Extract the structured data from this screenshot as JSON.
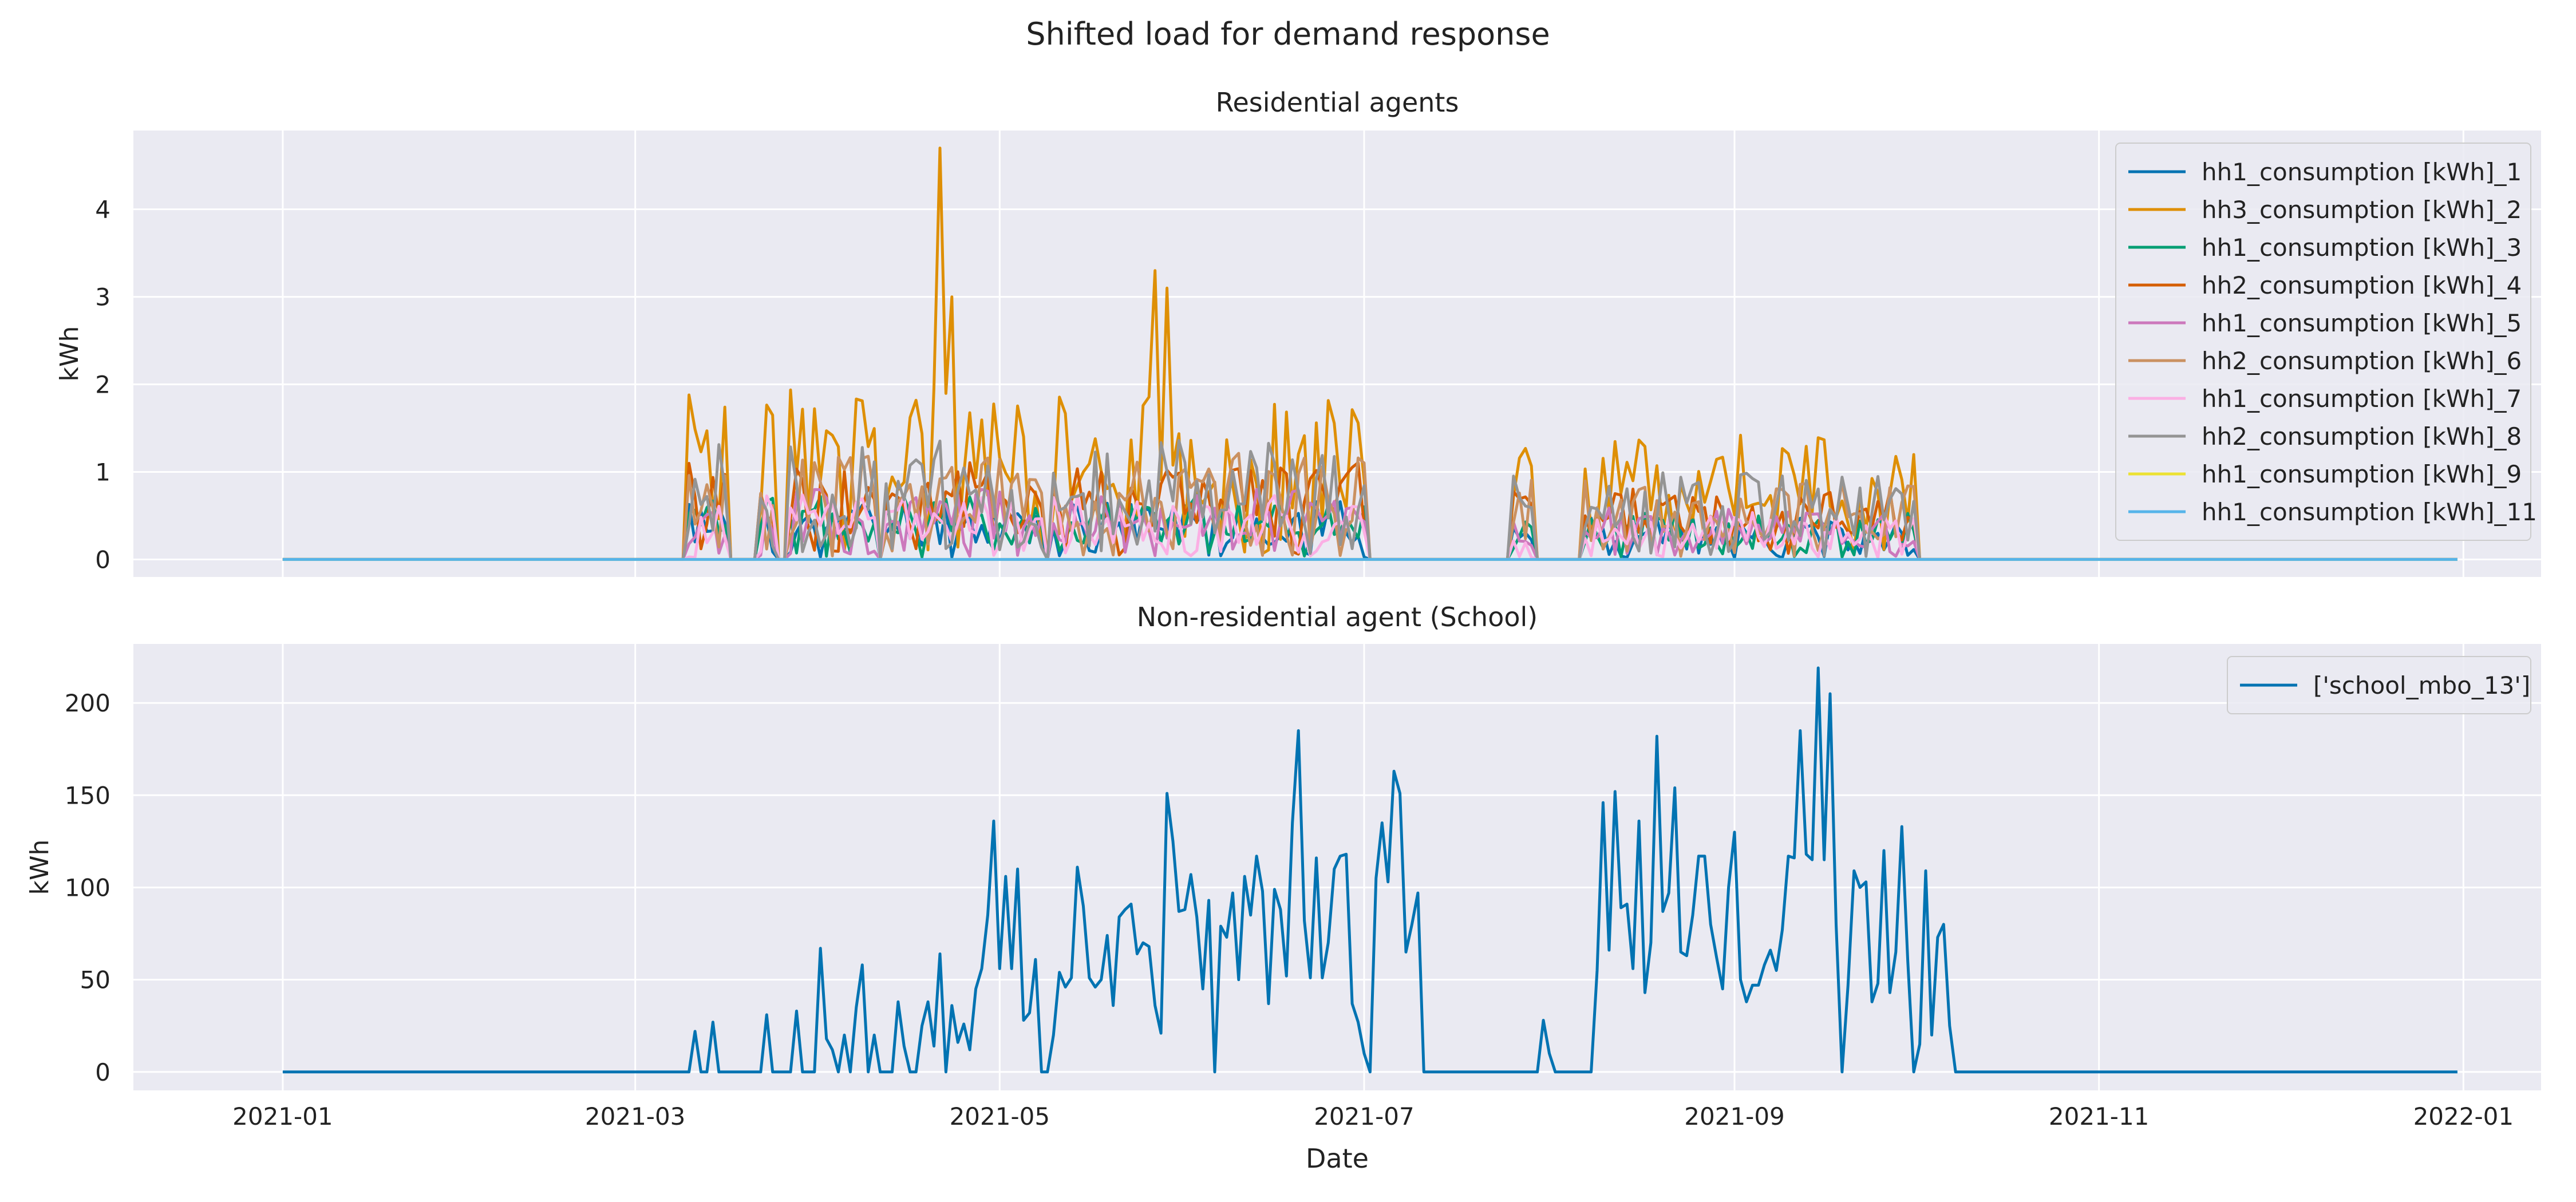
{
  "figure": {
    "suptitle": "Shifted load for demand response",
    "xlabel": "Date",
    "x_ticks": [
      "2021-01",
      "2021-03",
      "2021-05",
      "2021-07",
      "2021-09",
      "2021-11",
      "2022-01"
    ]
  },
  "chart_data": [
    {
      "type": "line",
      "title": "Residential agents",
      "xlabel": "",
      "ylabel": "kWh",
      "xlim": [
        "2020-12-07",
        "2022-01-14"
      ],
      "ylim": [
        -0.2,
        4.9
      ],
      "yticks": [
        0,
        1,
        2,
        3,
        4
      ],
      "grid": true,
      "legend": "top-right",
      "series": [
        {
          "name": "hh1_consumption [kWh]_1",
          "color": "#0173b2",
          "profile": "residential",
          "scale": 0.55,
          "seed": 11
        },
        {
          "name": "hh3_consumption [kWh]_2",
          "color": "#de8f05",
          "profile": "residential",
          "scale": 1.6,
          "seed": 23,
          "points": [
            [
              "2021-04-21",
              4.7
            ],
            [
              "2021-05-27",
              3.3
            ],
            [
              "2021-05-29",
              3.1
            ],
            [
              "2021-04-23",
              3.0
            ]
          ]
        },
        {
          "name": "hh1_consumption [kWh]_3",
          "color": "#029e73",
          "profile": "residential",
          "scale": 0.6,
          "seed": 37
        },
        {
          "name": "hh2_consumption [kWh]_4",
          "color": "#d55e00",
          "profile": "residential",
          "scale": 0.9,
          "seed": 41
        },
        {
          "name": "hh1_consumption [kWh]_5",
          "color": "#cc78bc",
          "profile": "residential",
          "scale": 0.65,
          "seed": 53
        },
        {
          "name": "hh2_consumption [kWh]_6",
          "color": "#ca9161",
          "profile": "residential",
          "scale": 1.0,
          "seed": 67
        },
        {
          "name": "hh1_consumption [kWh]_7",
          "color": "#fbafe4",
          "profile": "residential",
          "scale": 0.6,
          "seed": 71
        },
        {
          "name": "hh2_consumption [kWh]_8",
          "color": "#949494",
          "profile": "residential",
          "scale": 1.1,
          "seed": 83
        },
        {
          "name": "hh1_consumption [kWh]_9",
          "color": "#ece133",
          "profile": "zero",
          "scale": 0,
          "seed": 0
        },
        {
          "name": "hh1_consumption [kWh]_11",
          "color": "#56b4e9",
          "profile": "zero",
          "scale": 0,
          "seed": 0
        }
      ]
    },
    {
      "type": "line",
      "title": "Non-residential agent (School)",
      "xlabel": "Date",
      "ylabel": "kWh",
      "xlim": [
        "2020-12-07",
        "2022-01-14"
      ],
      "ylim": [
        -10,
        232
      ],
      "yticks": [
        0,
        50,
        100,
        150,
        200
      ],
      "grid": true,
      "legend": "top-right",
      "series": [
        {
          "name": "['school_mbo_13']",
          "color": "#0173b2",
          "profile": "school",
          "scale": 1,
          "seed": 5,
          "points": [
            [
              "2021-03-11",
              22
            ],
            [
              "2021-03-13",
              0
            ],
            [
              "2021-03-14",
              27
            ],
            [
              "2021-03-15",
              0
            ],
            [
              "2021-03-22",
              0
            ],
            [
              "2021-03-23",
              31
            ],
            [
              "2021-03-24",
              0
            ],
            [
              "2021-03-27",
              0
            ],
            [
              "2021-03-28",
              33
            ],
            [
              "2021-03-29",
              0
            ],
            [
              "2021-03-31",
              0
            ],
            [
              "2021-04-01",
              67
            ],
            [
              "2021-04-02",
              18
            ],
            [
              "2021-04-03",
              12
            ],
            [
              "2021-04-05",
              20
            ],
            [
              "2021-04-07",
              35
            ],
            [
              "2021-04-08",
              58
            ],
            [
              "2021-04-10",
              20
            ],
            [
              "2021-04-11",
              0
            ],
            [
              "2021-04-13",
              0
            ],
            [
              "2021-04-14",
              38
            ],
            [
              "2021-04-15",
              14
            ],
            [
              "2021-04-17",
              0
            ],
            [
              "2021-04-18",
              25
            ],
            [
              "2021-04-19",
              38
            ],
            [
              "2021-04-20",
              14
            ],
            [
              "2021-04-21",
              64
            ],
            [
              "2021-04-23",
              36
            ],
            [
              "2021-04-24",
              16
            ],
            [
              "2021-04-25",
              26
            ],
            [
              "2021-04-26",
              12
            ],
            [
              "2021-04-27",
              45
            ],
            [
              "2021-04-28",
              56
            ],
            [
              "2021-04-29",
              85
            ],
            [
              "2021-04-30",
              136
            ],
            [
              "2021-05-01",
              56
            ],
            [
              "2021-05-02",
              106
            ],
            [
              "2021-05-03",
              56
            ],
            [
              "2021-05-04",
              110
            ],
            [
              "2021-05-05",
              28
            ],
            [
              "2021-05-06",
              32
            ],
            [
              "2021-05-07",
              61
            ],
            [
              "2021-05-08",
              0
            ],
            [
              "2021-05-09",
              0
            ],
            [
              "2021-05-10",
              20
            ],
            [
              "2021-05-11",
              54
            ],
            [
              "2021-05-12",
              46
            ],
            [
              "2021-05-13",
              51
            ],
            [
              "2021-05-14",
              111
            ],
            [
              "2021-05-15",
              90
            ],
            [
              "2021-05-16",
              51
            ],
            [
              "2021-05-17",
              46
            ],
            [
              "2021-05-18",
              50
            ],
            [
              "2021-05-19",
              74
            ],
            [
              "2021-05-20",
              36
            ],
            [
              "2021-05-21",
              84
            ],
            [
              "2021-05-22",
              88
            ],
            [
              "2021-05-23",
              91
            ],
            [
              "2021-05-24",
              64
            ],
            [
              "2021-05-25",
              70
            ],
            [
              "2021-05-26",
              68
            ],
            [
              "2021-05-27",
              36
            ],
            [
              "2021-05-28",
              21
            ],
            [
              "2021-05-29",
              151
            ],
            [
              "2021-05-30",
              125
            ],
            [
              "2021-05-31",
              87
            ],
            [
              "2021-06-01",
              88
            ],
            [
              "2021-06-02",
              107
            ],
            [
              "2021-06-03",
              84
            ],
            [
              "2021-06-04",
              45
            ],
            [
              "2021-06-05",
              93
            ],
            [
              "2021-06-06",
              0
            ],
            [
              "2021-06-07",
              79
            ],
            [
              "2021-06-08",
              73
            ],
            [
              "2021-06-09",
              97
            ],
            [
              "2021-06-10",
              50
            ],
            [
              "2021-06-11",
              106
            ],
            [
              "2021-06-12",
              85
            ],
            [
              "2021-06-13",
              117
            ],
            [
              "2021-06-14",
              98
            ],
            [
              "2021-06-15",
              37
            ],
            [
              "2021-06-16",
              99
            ],
            [
              "2021-06-17",
              88
            ],
            [
              "2021-06-18",
              52
            ],
            [
              "2021-06-19",
              135
            ],
            [
              "2021-06-20",
              185
            ],
            [
              "2021-06-21",
              82
            ],
            [
              "2021-06-22",
              51
            ],
            [
              "2021-06-23",
              116
            ],
            [
              "2021-06-24",
              51
            ],
            [
              "2021-06-25",
              70
            ],
            [
              "2021-06-26",
              110
            ],
            [
              "2021-06-27",
              117
            ],
            [
              "2021-06-28",
              118
            ],
            [
              "2021-06-29",
              37
            ],
            [
              "2021-06-30",
              27
            ],
            [
              "2021-07-01",
              10
            ],
            [
              "2021-07-02",
              0
            ],
            [
              "2021-07-03",
              105
            ],
            [
              "2021-07-04",
              135
            ],
            [
              "2021-07-05",
              103
            ],
            [
              "2021-07-06",
              163
            ],
            [
              "2021-07-07",
              151
            ],
            [
              "2021-07-08",
              65
            ],
            [
              "2021-07-09",
              80
            ],
            [
              "2021-07-10",
              97
            ],
            [
              "2021-07-11",
              0
            ],
            [
              "2021-07-30",
              0
            ],
            [
              "2021-07-31",
              28
            ],
            [
              "2021-08-01",
              10
            ],
            [
              "2021-08-02",
              0
            ],
            [
              "2021-08-08",
              0
            ],
            [
              "2021-08-09",
              55
            ],
            [
              "2021-08-10",
              146
            ],
            [
              "2021-08-11",
              66
            ],
            [
              "2021-08-12",
              152
            ],
            [
              "2021-08-13",
              89
            ],
            [
              "2021-08-14",
              91
            ],
            [
              "2021-08-15",
              56
            ],
            [
              "2021-08-16",
              136
            ],
            [
              "2021-08-17",
              43
            ],
            [
              "2021-08-18",
              70
            ],
            [
              "2021-08-19",
              182
            ],
            [
              "2021-08-20",
              87
            ],
            [
              "2021-08-21",
              97
            ],
            [
              "2021-08-22",
              154
            ],
            [
              "2021-08-23",
              65
            ],
            [
              "2021-08-24",
              63
            ],
            [
              "2021-08-25",
              85
            ],
            [
              "2021-08-26",
              117
            ],
            [
              "2021-08-27",
              117
            ],
            [
              "2021-08-28",
              80
            ],
            [
              "2021-08-29",
              62
            ],
            [
              "2021-08-30",
              45
            ],
            [
              "2021-08-31",
              100
            ],
            [
              "2021-09-01",
              130
            ],
            [
              "2021-09-02",
              50
            ],
            [
              "2021-09-03",
              38
            ],
            [
              "2021-09-04",
              47
            ],
            [
              "2021-09-05",
              47
            ],
            [
              "2021-09-06",
              58
            ],
            [
              "2021-09-07",
              66
            ],
            [
              "2021-09-08",
              55
            ],
            [
              "2021-09-09",
              77
            ],
            [
              "2021-09-10",
              117
            ],
            [
              "2021-09-11",
              116
            ],
            [
              "2021-09-12",
              185
            ],
            [
              "2021-09-13",
              118
            ],
            [
              "2021-09-14",
              115
            ],
            [
              "2021-09-15",
              219
            ],
            [
              "2021-09-16",
              115
            ],
            [
              "2021-09-17",
              205
            ],
            [
              "2021-09-18",
              80
            ],
            [
              "2021-09-19",
              0
            ],
            [
              "2021-09-20",
              47
            ],
            [
              "2021-09-21",
              109
            ],
            [
              "2021-09-22",
              100
            ],
            [
              "2021-09-23",
              103
            ],
            [
              "2021-09-24",
              38
            ],
            [
              "2021-09-25",
              48
            ],
            [
              "2021-09-26",
              120
            ],
            [
              "2021-09-27",
              43
            ],
            [
              "2021-09-28",
              65
            ],
            [
              "2021-09-29",
              133
            ],
            [
              "2021-09-30",
              60
            ],
            [
              "2021-10-01",
              0
            ],
            [
              "2021-10-02",
              15
            ],
            [
              "2021-10-03",
              109
            ],
            [
              "2021-10-04",
              20
            ],
            [
              "2021-10-05",
              73
            ],
            [
              "2021-10-06",
              80
            ],
            [
              "2021-10-07",
              25
            ],
            [
              "2021-10-08",
              0
            ]
          ]
        }
      ]
    }
  ]
}
